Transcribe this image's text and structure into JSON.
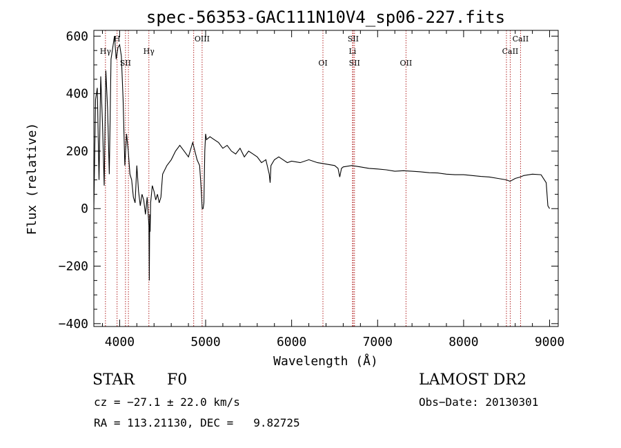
{
  "chart_data": {
    "type": "line",
    "title": "spec-56353-GAC111N10V4_sp06-227.fits",
    "xlabel": "Wavelength (Å)",
    "ylabel": "Flux (relative)",
    "xlim": [
      3700,
      9100
    ],
    "ylim": [
      -410,
      620
    ],
    "x_ticks": [
      4000,
      5000,
      6000,
      7000,
      8000,
      9000
    ],
    "y_ticks": [
      -400,
      -200,
      0,
      200,
      400,
      600
    ],
    "grid": false,
    "line_color": "#000000",
    "marker_line_color": "#b22222",
    "series": [
      {
        "x": [
          3700,
          3720,
          3740,
          3760,
          3780,
          3800,
          3820,
          3840,
          3860,
          3880,
          3900,
          3920,
          3940,
          3960,
          3980,
          4000,
          4020,
          4040,
          4060,
          4080,
          4100,
          4120,
          4140,
          4160,
          4180,
          4200,
          4220,
          4240,
          4260,
          4280,
          4300,
          4320,
          4340,
          4345,
          4350,
          4355,
          4360,
          4380,
          4400,
          4420,
          4440,
          4460,
          4480,
          4500,
          4550,
          4600,
          4650,
          4700,
          4750,
          4800,
          4850,
          4900,
          4930,
          4950,
          4960,
          4970,
          4980,
          4990,
          5000,
          5010,
          5050,
          5100,
          5150,
          5200,
          5250,
          5300,
          5350,
          5400,
          5450,
          5500,
          5550,
          5600,
          5650,
          5700,
          5740,
          5750,
          5760,
          5800,
          5850,
          5900,
          5950,
          6000,
          6100,
          6200,
          6300,
          6400,
          6500,
          6540,
          6560,
          6580,
          6600,
          6700,
          6800,
          6900,
          7000,
          7100,
          7200,
          7300,
          7400,
          7500,
          7600,
          7700,
          7800,
          7900,
          8000,
          8100,
          8200,
          8300,
          8400,
          8500,
          8540,
          8600,
          8660,
          8700,
          8800,
          8900,
          8960,
          8980,
          9000
        ],
        "values": [
          0,
          380,
          420,
          100,
          460,
          300,
          80,
          480,
          350,
          120,
          520,
          560,
          600,
          520,
          560,
          570,
          530,
          380,
          150,
          260,
          200,
          120,
          100,
          40,
          20,
          150,
          60,
          10,
          50,
          30,
          -20,
          40,
          -60,
          -250,
          -20,
          -80,
          20,
          80,
          60,
          30,
          50,
          20,
          40,
          120,
          150,
          170,
          200,
          220,
          200,
          180,
          230,
          170,
          150,
          60,
          0,
          0,
          20,
          200,
          260,
          240,
          250,
          240,
          230,
          210,
          220,
          200,
          190,
          210,
          180,
          200,
          190,
          180,
          160,
          170,
          120,
          90,
          150,
          170,
          180,
          170,
          160,
          165,
          160,
          170,
          160,
          155,
          150,
          140,
          110,
          140,
          145,
          150,
          145,
          140,
          138,
          135,
          130,
          132,
          130,
          128,
          125,
          124,
          120,
          118,
          118,
          115,
          112,
          110,
          105,
          100,
          95,
          105,
          110,
          115,
          120,
          118,
          90,
          10,
          0
        ]
      }
    ],
    "lines": [
      {
        "label": "Hγ",
        "x": 3835,
        "row": 1
      },
      {
        "label": "H",
        "x": 3970,
        "row": 0
      },
      {
        "label": "SII",
        "x": 4068,
        "row": 2
      },
      {
        "label": "Hγ",
        "x": 4340,
        "row": 1
      },
      {
        "label": "OIII",
        "x": 4959,
        "row": 0
      },
      {
        "label": "OI",
        "x": 6364,
        "row": 2
      },
      {
        "label": "SII",
        "x": 6716,
        "row": 0
      },
      {
        "label": "Li",
        "x": 6708,
        "row": 1
      },
      {
        "label": "SII",
        "x": 6731,
        "row": 2
      },
      {
        "label": "OII",
        "x": 7330,
        "row": 2
      },
      {
        "label": "CaII",
        "x": 8662,
        "row": 0
      },
      {
        "label": "CaII",
        "x": 8542,
        "row": 1
      }
    ],
    "extra_marker_x": [
      4102,
      4861,
      8498
    ]
  },
  "info": {
    "object_class": "STAR",
    "subclass": "F0",
    "survey": "LAMOST DR2",
    "cz": "cz = −27.1 ± 22.0 km/s",
    "obs_date": "Obs−Date: 20130301",
    "coords": "RA = 113.21130, DEC =   9.82725"
  }
}
